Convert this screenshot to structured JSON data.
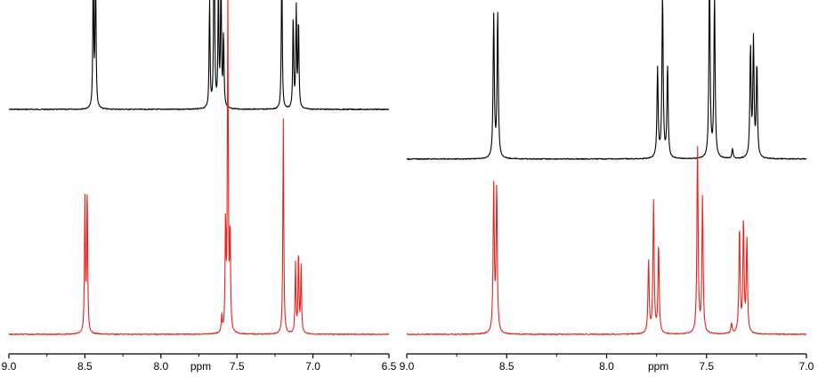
{
  "chart_data": [
    {
      "type": "line",
      "title": "",
      "xlabel": "ppm",
      "ylabel": "",
      "xlim": [
        9.0,
        6.5
      ],
      "x_reversed": true,
      "xticks": [
        9.0,
        8.5,
        8.0,
        7.5,
        7.0,
        6.5
      ],
      "xtick_labels": [
        "9.0",
        "8.5",
        "8.0",
        "7.5",
        "7.0",
        "6.5"
      ],
      "grid": false,
      "legend": "none",
      "series": [
        {
          "color": "#000000",
          "baseline_fraction": 0.68,
          "peaks": [
            {
              "x": 8.445,
              "h": 0.42
            },
            {
              "x": 8.43,
              "h": 0.44
            },
            {
              "x": 7.68,
              "h": 0.33
            },
            {
              "x": 7.65,
              "h": 0.66
            },
            {
              "x": 7.622,
              "h": 0.36
            },
            {
              "x": 7.605,
              "h": 0.42
            },
            {
              "x": 7.588,
              "h": 0.22
            },
            {
              "x": 7.205,
              "h": 0.46
            },
            {
              "x": 7.13,
              "h": 0.28
            },
            {
              "x": 7.11,
              "h": 0.3
            },
            {
              "x": 7.095,
              "h": 0.27
            }
          ]
        },
        {
          "color": "#e8231e",
          "baseline_fraction": 0.0,
          "peaks": [
            {
              "x": 8.5,
              "h": 0.41
            },
            {
              "x": 8.485,
              "h": 0.44
            },
            {
              "x": 7.6,
              "h": 0.05
            },
            {
              "x": 7.575,
              "h": 0.32
            },
            {
              "x": 7.56,
              "h": 1.0
            },
            {
              "x": 7.545,
              "h": 0.3
            },
            {
              "x": 7.195,
              "h": 0.65
            },
            {
              "x": 7.115,
              "h": 0.21
            },
            {
              "x": 7.095,
              "h": 0.25
            },
            {
              "x": 7.078,
              "h": 0.2
            }
          ]
        }
      ]
    },
    {
      "type": "line",
      "title": "",
      "xlabel": "ppm",
      "ylabel": "",
      "xlim": [
        9.0,
        7.0
      ],
      "x_reversed": true,
      "xticks": [
        9.0,
        8.5,
        8.0,
        7.5,
        7.0
      ],
      "xtick_labels": [
        "9.0",
        "8.5",
        "8.0",
        "7.5",
        "7.0"
      ],
      "grid": false,
      "legend": "none",
      "series": [
        {
          "color": "#000000",
          "baseline_fraction": 0.53,
          "peaks": [
            {
              "x": 8.565,
              "h": 0.43
            },
            {
              "x": 8.545,
              "h": 0.44
            },
            {
              "x": 7.745,
              "h": 0.27
            },
            {
              "x": 7.72,
              "h": 0.5
            },
            {
              "x": 7.695,
              "h": 0.28
            },
            {
              "x": 7.485,
              "h": 0.58
            },
            {
              "x": 7.46,
              "h": 0.49
            },
            {
              "x": 7.37,
              "h": 0.03
            },
            {
              "x": 7.28,
              "h": 0.33
            },
            {
              "x": 7.265,
              "h": 0.35
            },
            {
              "x": 7.248,
              "h": 0.28
            }
          ]
        },
        {
          "color": "#e8231e",
          "baseline_fraction": 0.0,
          "peaks": [
            {
              "x": 8.565,
              "h": 0.44
            },
            {
              "x": 8.55,
              "h": 0.44
            },
            {
              "x": 7.79,
              "h": 0.22
            },
            {
              "x": 7.765,
              "h": 0.4
            },
            {
              "x": 7.74,
              "h": 0.27
            },
            {
              "x": 7.545,
              "h": 0.57
            },
            {
              "x": 7.52,
              "h": 0.41
            },
            {
              "x": 7.375,
              "h": 0.03
            },
            {
              "x": 7.335,
              "h": 0.32
            },
            {
              "x": 7.315,
              "h": 0.34
            },
            {
              "x": 7.298,
              "h": 0.28
            }
          ]
        }
      ]
    }
  ]
}
